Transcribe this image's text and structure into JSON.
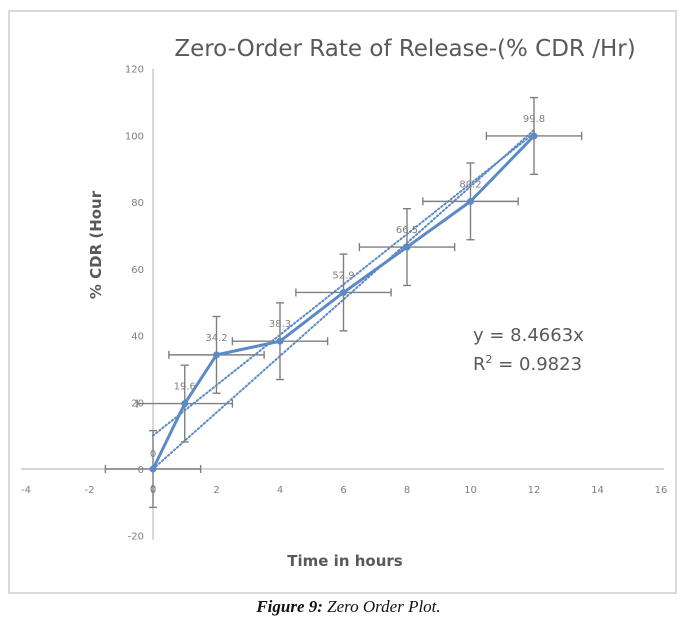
{
  "chart_data": {
    "type": "line",
    "title": "Zero-Order Rate of Release-(% CDR /Hr)",
    "xlabel": "Time in hours",
    "ylabel": "% CDR (Hour",
    "xlim": [
      -4,
      16
    ],
    "ylim": [
      -20,
      120
    ],
    "x_ticks": [
      -4,
      -2,
      0,
      2,
      4,
      6,
      8,
      10,
      12,
      14,
      16
    ],
    "y_ticks": [
      -20,
      0,
      20,
      40,
      60,
      80,
      100,
      120
    ],
    "grid": false,
    "series": [
      {
        "name": "% CDR",
        "color": "#5b8ac6",
        "x": [
          0,
          1,
          2,
          4,
          6,
          8,
          10,
          12
        ],
        "y": [
          0,
          19.6,
          34.2,
          38.3,
          52.9,
          66.5,
          80.2,
          99.8
        ],
        "data_labels": [
          "0",
          "19.6",
          "34.2",
          "38.3",
          "52.9",
          "66.5",
          "80.2",
          "99.8"
        ],
        "y_error": 11.5,
        "x_error": 1.5
      }
    ],
    "trendlines": [
      {
        "name": "linear-through-origin",
        "slope": 8.4663,
        "intercept": 0,
        "x_range": [
          0,
          12
        ],
        "style": "dotted",
        "color": "#5b8ac6"
      },
      {
        "name": "linear",
        "slope": 7.55,
        "intercept": 10,
        "x_range": [
          0,
          12
        ],
        "style": "dotted",
        "color": "#5b8ac6"
      }
    ],
    "annotations": {
      "equation": "y = 8.4663x",
      "r_squared_prefix": "R",
      "r_squared_sup": "2",
      "r_squared_value": " = 0.9823",
      "extra_zero_labels": [
        "0",
        "0"
      ]
    }
  },
  "caption": {
    "label": "Figure 9:",
    "text": " Zero Order Plot."
  }
}
